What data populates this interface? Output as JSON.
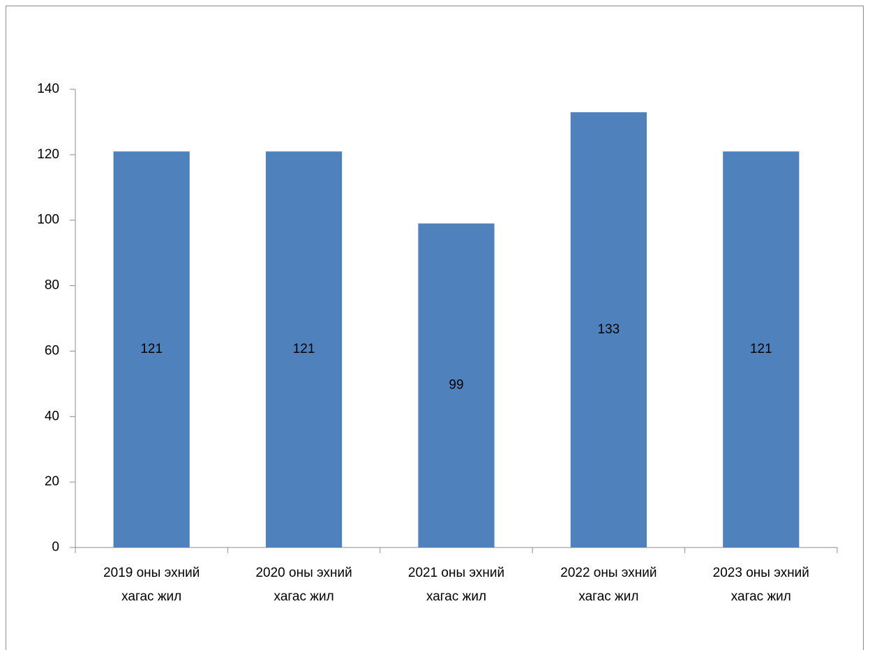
{
  "chart_data": {
    "type": "bar",
    "categories": [
      "2019 оны эхний\nхагас жил",
      "2020 оны эхний\nхагас жил",
      "2021 оны эхний\nхагас жил",
      "2022 оны эхний\nхагас жил",
      "2023 оны эхний\nхагас жил"
    ],
    "values": [
      121,
      121,
      99,
      133,
      121
    ],
    "color": "#4f81bd",
    "ylim": [
      0,
      140
    ],
    "yticks": [
      0,
      20,
      40,
      60,
      80,
      100,
      120,
      140
    ],
    "grid": false
  }
}
